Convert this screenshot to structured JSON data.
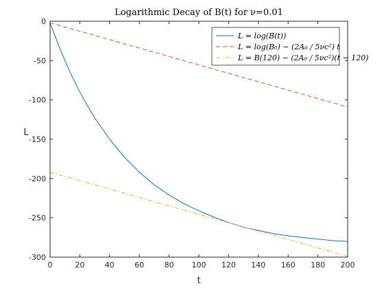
{
  "chart_data": {
    "type": "line",
    "title": "Logarithmic Decay of B(t) for ν=0.01",
    "xlabel": "t",
    "ylabel": "L",
    "xlim": [
      0,
      200
    ],
    "ylim": [
      -300,
      0
    ],
    "xticks": [
      0,
      20,
      40,
      60,
      80,
      100,
      120,
      140,
      160,
      180,
      200
    ],
    "yticks": [
      0,
      -50,
      -100,
      -150,
      -200,
      -250,
      -300
    ],
    "xtick_labels": [
      "0",
      "20",
      "40",
      "60",
      "80",
      "100",
      "120",
      "140",
      "160",
      "180",
      "200"
    ],
    "ytick_labels": [
      "0",
      "-50",
      "-100",
      "-150",
      "-200",
      "-250",
      "-300"
    ],
    "grid": false,
    "legend_position": "top-right",
    "series": [
      {
        "name": "L = log(B(t))",
        "color": "#0072BD",
        "style": "solid",
        "x": [
          0,
          5,
          10,
          15,
          20,
          25,
          30,
          40,
          50,
          60,
          70,
          80,
          90,
          100,
          110,
          120,
          130,
          140,
          150,
          160,
          170,
          180,
          190,
          200
        ],
        "y": [
          -2,
          -27,
          -50,
          -71,
          -90,
          -107,
          -123,
          -150,
          -173,
          -192,
          -208,
          -221,
          -232,
          -241,
          -249,
          -256,
          -262,
          -266,
          -270,
          -273,
          -275,
          -277,
          -279,
          -280
        ]
      },
      {
        "name": "L = log(B₀) − (2A₀ / 5νc²) t",
        "color": "#D95319",
        "style": "dashed",
        "x": [
          0,
          200
        ],
        "y": [
          -2,
          -109
        ]
      },
      {
        "name": "L = B(120) − (2A₀ / 5νc²)(t − 120)",
        "color": "#EDB120",
        "style": "dashdot",
        "x": [
          0,
          200
        ],
        "y": [
          -192,
          -299
        ]
      }
    ]
  }
}
